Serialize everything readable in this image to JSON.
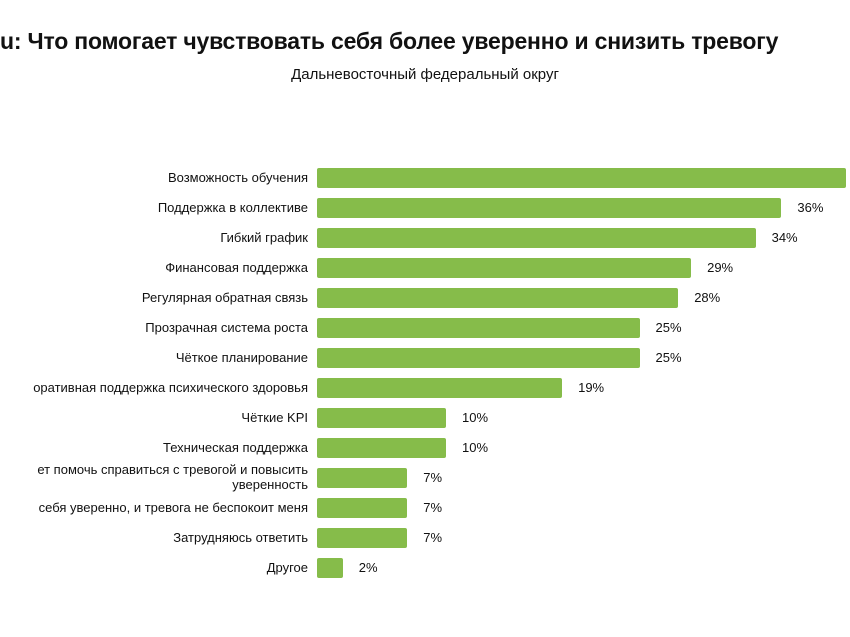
{
  "chart_data": {
    "type": "bar",
    "orientation": "horizontal",
    "title": "u: Что помогает чувствовать себя более уверенно и снизить тревогу",
    "subtitle": "Дальневосточный федеральный округ",
    "categories": [
      "Возможность обучения",
      "Поддержка в коллективе",
      "Гибкий график",
      "Финансовая поддержка",
      "Регулярная обратная связь",
      "Прозрачная система роста",
      "Чёткое планирование",
      "оративная поддержка психического здоровья",
      "Чёткие KPI",
      "Техническая поддержка",
      "ет помочь справиться с тревогой и повысить\nуверенность",
      "себя уверенно, и тревога не беспокоит меня",
      "Затрудняюсь ответить",
      "Другое"
    ],
    "values": [
      41,
      36,
      34,
      29,
      28,
      25,
      25,
      19,
      10,
      10,
      7,
      7,
      7,
      2
    ],
    "labels": [
      "",
      "36%",
      "34%",
      "29%",
      "28%",
      "25%",
      "25%",
      "19%",
      "10%",
      "10%",
      "7%",
      "7%",
      "7%",
      "2%"
    ],
    "xlabel": "",
    "ylabel": "",
    "xlim": [
      0,
      41
    ],
    "grid": false,
    "bar_color": "#86bc4a"
  }
}
